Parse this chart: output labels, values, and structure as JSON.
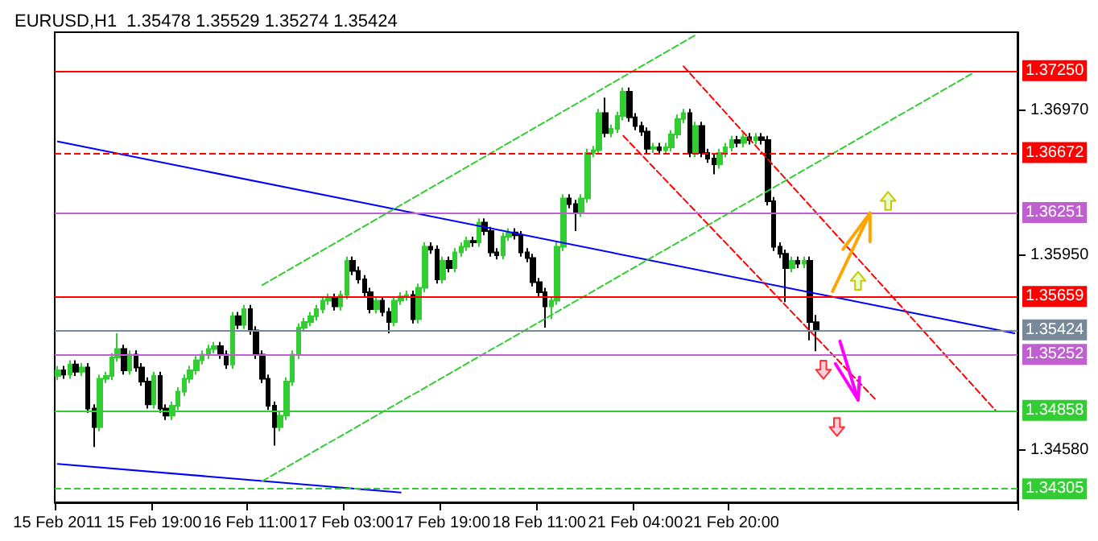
{
  "chart_data": {
    "type": "candlestick",
    "title": "EURUSD,H1  1.35478 1.35529 1.35274 1.35424",
    "categories": [
      "15 Feb 2011",
      null,
      null,
      null,
      null,
      null,
      null,
      null,
      null,
      null,
      null,
      null,
      null,
      null,
      null,
      null,
      "15 Feb 19:00",
      null,
      null,
      null,
      null,
      null,
      null,
      null,
      null,
      null,
      null,
      null,
      null,
      null,
      null,
      null,
      "16 Feb 11:00",
      null,
      null,
      null,
      null,
      null,
      null,
      null,
      null,
      null,
      null,
      null,
      null,
      null,
      null,
      null,
      "17 Feb 03:00",
      null,
      null,
      null,
      null,
      null,
      null,
      null,
      null,
      null,
      null,
      null,
      null,
      null,
      null,
      null,
      "17 Feb 19:00",
      null,
      null,
      null,
      null,
      null,
      null,
      null,
      null,
      null,
      null,
      null,
      null,
      null,
      null,
      null,
      "18 Feb 11:00",
      null,
      null,
      null,
      null,
      null,
      null,
      null,
      null,
      null,
      null,
      null,
      null,
      null,
      null,
      null,
      "21 Feb 04:00",
      null,
      null,
      null,
      null,
      null,
      null,
      null,
      null,
      null,
      null,
      null,
      null,
      null,
      null,
      null,
      "21 Feb 20:00",
      null,
      null,
      null,
      null,
      null,
      null,
      null,
      null,
      null,
      null,
      null,
      null,
      null,
      null,
      null,
      null,
      null,
      null,
      null,
      null,
      null,
      null,
      null,
      null,
      null,
      null,
      null,
      null,
      null,
      null,
      null,
      null,
      null,
      null,
      null,
      null,
      null,
      null,
      null,
      null,
      null,
      null,
      null,
      null,
      null,
      null,
      null
    ],
    "colors": [
      "#32cd32",
      "#000000",
      "#32cd32",
      "#000000",
      "#32cd32",
      "#000000",
      "#000000",
      "#32cd32",
      "#32cd32",
      "#32cd32",
      "#32cd32",
      "#000000",
      "#32cd32",
      "#000000",
      "#000000",
      "#000000",
      "#32cd32",
      "#000000",
      "#000000",
      "#32cd32",
      "#32cd32",
      "#32cd32",
      "#32cd32",
      "#32cd32",
      "#32cd32",
      "#32cd32",
      "#32cd32",
      "#000000",
      "#000000",
      "#32cd32",
      "#000000",
      "#32cd32",
      "#000000",
      "#000000",
      "#000000",
      "#000000",
      "#000000",
      "#32cd32",
      "#32cd32",
      "#32cd32",
      "#32cd32",
      "#32cd32",
      "#32cd32",
      "#32cd32",
      "#32cd32",
      "#32cd32",
      "#000000",
      "#32cd32",
      "#32cd32",
      "#000000",
      "#000000",
      "#000000",
      "#000000",
      "#32cd32",
      "#000000",
      "#000000",
      "#32cd32",
      "#32cd32",
      "#32cd32",
      "#000000",
      "#32cd32",
      "#32cd32",
      "#000000",
      "#000000",
      "#32cd32",
      "#000000",
      "#32cd32",
      "#32cd32",
      "#32cd32",
      "#000000",
      "#32cd32",
      "#000000",
      "#000000",
      "#000000",
      "#32cd32",
      "#32cd32",
      "#000000",
      "#000000",
      "#000000",
      "#000000",
      "#000000",
      "#000000",
      "#32cd32",
      "#32cd32",
      "#32cd32",
      "#000000",
      "#000000",
      "#32cd32",
      "#32cd32",
      "#32cd32",
      "#32cd32",
      "#000000",
      "#32cd32",
      "#32cd32",
      "#32cd32",
      "#000000",
      "#000000",
      "#000000",
      "#000000",
      "#32cd32",
      "#000000",
      "#32cd32",
      "#32cd32",
      "#32cd32",
      "#32cd32",
      "#000000",
      "#32cd32",
      "#000000",
      "#000000",
      "#000000",
      "#32cd32",
      "#32cd32",
      "#32cd32",
      "#000000",
      "#32cd32",
      "#000000",
      "#32cd32",
      "#000000",
      "#000000",
      "#000000",
      "#000000",
      "#000000",
      "#32cd32",
      "#000000",
      "#32cd32",
      "#000000",
      "#000000",
      null,
      null,
      null,
      null,
      null,
      null,
      null,
      null,
      null,
      null,
      null,
      null,
      null,
      null,
      null,
      null,
      null,
      null,
      null,
      null,
      null,
      null,
      null,
      null,
      null,
      null,
      null,
      null,
      null,
      null,
      null,
      null,
      null
    ],
    "ohlc": [
      [
        1.351,
        1.3517,
        1.3507,
        1.3514
      ],
      [
        1.3514,
        1.3517,
        1.3508,
        1.3511
      ],
      [
        1.3511,
        1.3521,
        1.3508,
        1.3518
      ],
      [
        1.3518,
        1.3521,
        1.351,
        1.3513
      ],
      [
        1.3513,
        1.3519,
        1.351,
        1.3516
      ],
      [
        1.3516,
        1.3519,
        1.3484,
        1.3487
      ],
      [
        1.3487,
        1.349,
        1.346,
        1.3474
      ],
      [
        1.3474,
        1.3511,
        1.3471,
        1.3508
      ],
      [
        1.3508,
        1.3513,
        1.3505,
        1.351
      ],
      [
        1.351,
        1.3526,
        1.3507,
        1.3523
      ],
      [
        1.3523,
        1.354,
        1.352,
        1.3529
      ],
      [
        1.3529,
        1.3532,
        1.3511,
        1.3514
      ],
      [
        1.3514,
        1.3528,
        1.3511,
        1.3525
      ],
      [
        1.3525,
        1.3528,
        1.3513,
        1.3516
      ],
      [
        1.3516,
        1.3519,
        1.3503,
        1.3506
      ],
      [
        1.3506,
        1.3509,
        1.3487,
        1.349
      ],
      [
        1.349,
        1.3513,
        1.3487,
        1.351
      ],
      [
        1.351,
        1.3513,
        1.3484,
        1.3487
      ],
      [
        1.3487,
        1.349,
        1.3479,
        1.3482
      ],
      [
        1.3482,
        1.3492,
        1.3479,
        1.3489
      ],
      [
        1.3489,
        1.3502,
        1.3486,
        1.3499
      ],
      [
        1.3499,
        1.3511,
        1.3496,
        1.3508
      ],
      [
        1.3508,
        1.3517,
        1.3505,
        1.3514
      ],
      [
        1.3514,
        1.3524,
        1.3511,
        1.3521
      ],
      [
        1.3521,
        1.3528,
        1.3518,
        1.3525
      ],
      [
        1.3525,
        1.3532,
        1.3522,
        1.3529
      ],
      [
        1.3529,
        1.3534,
        1.3526,
        1.3531
      ],
      [
        1.3531,
        1.3534,
        1.3522,
        1.3525
      ],
      [
        1.3525,
        1.3528,
        1.3515,
        1.3518
      ],
      [
        1.3518,
        1.3555,
        1.3515,
        1.3552
      ],
      [
        1.3552,
        1.3555,
        1.3543,
        1.3546
      ],
      [
        1.3546,
        1.356,
        1.3543,
        1.3557
      ],
      [
        1.3557,
        1.356,
        1.3539,
        1.3542
      ],
      [
        1.3542,
        1.3545,
        1.3522,
        1.3525
      ],
      [
        1.3525,
        1.3528,
        1.3505,
        1.3508
      ],
      [
        1.3508,
        1.3511,
        1.3486,
        1.3489
      ],
      [
        1.3489,
        1.3492,
        1.3461,
        1.3474
      ],
      [
        1.3474,
        1.3485,
        1.3471,
        1.3482
      ],
      [
        1.3482,
        1.3509,
        1.3479,
        1.3506
      ],
      [
        1.3506,
        1.3528,
        1.3503,
        1.3525
      ],
      [
        1.3525,
        1.3547,
        1.3522,
        1.3544
      ],
      [
        1.3544,
        1.3551,
        1.3541,
        1.3548
      ],
      [
        1.3548,
        1.3555,
        1.3545,
        1.3552
      ],
      [
        1.3552,
        1.356,
        1.3549,
        1.3557
      ],
      [
        1.3557,
        1.3566,
        1.3554,
        1.3563
      ],
      [
        1.3563,
        1.3568,
        1.356,
        1.3565
      ],
      [
        1.3565,
        1.3568,
        1.3556,
        1.3559
      ],
      [
        1.3559,
        1.357,
        1.3556,
        1.3567
      ],
      [
        1.3567,
        1.3594,
        1.3564,
        1.3591
      ],
      [
        1.3591,
        1.3594,
        1.3581,
        1.3584
      ],
      [
        1.3584,
        1.3587,
        1.3575,
        1.3578
      ],
      [
        1.3578,
        1.3581,
        1.3566,
        1.3569
      ],
      [
        1.3569,
        1.3572,
        1.3554,
        1.3557
      ],
      [
        1.3557,
        1.3566,
        1.3554,
        1.3563
      ],
      [
        1.3563,
        1.3566,
        1.3552,
        1.3555
      ],
      [
        1.3555,
        1.3558,
        1.354,
        1.3548
      ],
      [
        1.3548,
        1.3566,
        1.3545,
        1.3563
      ],
      [
        1.3563,
        1.3569,
        1.356,
        1.3566
      ],
      [
        1.3566,
        1.357,
        1.3563,
        1.3567
      ],
      [
        1.3567,
        1.357,
        1.3547,
        1.355
      ],
      [
        1.355,
        1.3575,
        1.3547,
        1.3572
      ],
      [
        1.3572,
        1.3604,
        1.3569,
        1.3601
      ],
      [
        1.3601,
        1.3604,
        1.3596,
        1.3599
      ],
      [
        1.3599,
        1.3602,
        1.3575,
        1.3578
      ],
      [
        1.3578,
        1.3594,
        1.3575,
        1.3591
      ],
      [
        1.3591,
        1.3594,
        1.3583,
        1.3586
      ],
      [
        1.3586,
        1.36,
        1.3583,
        1.3597
      ],
      [
        1.3597,
        1.3604,
        1.3594,
        1.3601
      ],
      [
        1.3601,
        1.3608,
        1.3598,
        1.3605
      ],
      [
        1.3605,
        1.3608,
        1.3601,
        1.3604
      ],
      [
        1.3604,
        1.3621,
        1.3601,
        1.3618
      ],
      [
        1.3618,
        1.3621,
        1.3609,
        1.3612
      ],
      [
        1.3612,
        1.3615,
        1.3594,
        1.3597
      ],
      [
        1.3597,
        1.36,
        1.3592,
        1.3595
      ],
      [
        1.3595,
        1.3611,
        1.3592,
        1.3608
      ],
      [
        1.3608,
        1.3614,
        1.3605,
        1.3611
      ],
      [
        1.3611,
        1.3614,
        1.3606,
        1.3609
      ],
      [
        1.3609,
        1.3612,
        1.3594,
        1.3597
      ],
      [
        1.3597,
        1.36,
        1.359,
        1.3593
      ],
      [
        1.3593,
        1.3596,
        1.3573,
        1.3576
      ],
      [
        1.3576,
        1.3579,
        1.3566,
        1.3569
      ],
      [
        1.3569,
        1.3572,
        1.3544,
        1.3559
      ],
      [
        1.3559,
        1.3566,
        1.355,
        1.3563
      ],
      [
        1.3563,
        1.3604,
        1.356,
        1.3601
      ],
      [
        1.3601,
        1.3638,
        1.3598,
        1.3635
      ],
      [
        1.3635,
        1.3638,
        1.3628,
        1.3631
      ],
      [
        1.3631,
        1.3634,
        1.3612,
        1.3625
      ],
      [
        1.3625,
        1.3638,
        1.3622,
        1.3635
      ],
      [
        1.3635,
        1.367,
        1.3632,
        1.3667
      ],
      [
        1.3667,
        1.3672,
        1.3664,
        1.3669
      ],
      [
        1.3669,
        1.3698,
        1.3666,
        1.3695
      ],
      [
        1.3695,
        1.3706,
        1.3678,
        1.3681
      ],
      [
        1.3681,
        1.3687,
        1.3678,
        1.3684
      ],
      [
        1.3684,
        1.3696,
        1.3681,
        1.3693
      ],
      [
        1.3693,
        1.3713,
        1.369,
        1.371
      ],
      [
        1.371,
        1.3713,
        1.3689,
        1.3692
      ],
      [
        1.3692,
        1.3695,
        1.3683,
        1.3686
      ],
      [
        1.3686,
        1.3689,
        1.3679,
        1.3682
      ],
      [
        1.3682,
        1.3685,
        1.3667,
        1.367
      ],
      [
        1.367,
        1.3674,
        1.3667,
        1.3671
      ],
      [
        1.3671,
        1.3674,
        1.3666,
        1.3669
      ],
      [
        1.3669,
        1.3674,
        1.3666,
        1.3671
      ],
      [
        1.3671,
        1.3683,
        1.3668,
        1.368
      ],
      [
        1.368,
        1.3694,
        1.3677,
        1.3691
      ],
      [
        1.3691,
        1.3698,
        1.3688,
        1.3695
      ],
      [
        1.3695,
        1.3698,
        1.3664,
        1.3667
      ],
      [
        1.3667,
        1.3689,
        1.3664,
        1.3686
      ],
      [
        1.3686,
        1.3689,
        1.3664,
        1.3667
      ],
      [
        1.3667,
        1.367,
        1.366,
        1.3663
      ],
      [
        1.3663,
        1.3666,
        1.3652,
        1.3659
      ],
      [
        1.3659,
        1.367,
        1.3656,
        1.3667
      ],
      [
        1.3667,
        1.3674,
        1.3664,
        1.3671
      ],
      [
        1.3671,
        1.3679,
        1.3668,
        1.3676
      ],
      [
        1.3676,
        1.3679,
        1.3671,
        1.3674
      ],
      [
        1.3674,
        1.3681,
        1.3671,
        1.3678
      ],
      [
        1.3678,
        1.3681,
        1.3673,
        1.3676
      ],
      [
        1.3676,
        1.3681,
        1.3673,
        1.3678
      ],
      [
        1.3678,
        1.3681,
        1.3673,
        1.3676
      ],
      [
        1.3676,
        1.3679,
        1.363,
        1.3633
      ],
      [
        1.3633,
        1.3636,
        1.3598,
        1.3601
      ],
      [
        1.3601,
        1.3604,
        1.3593,
        1.3596
      ],
      [
        1.3596,
        1.3599,
        1.3562,
        1.3586
      ],
      [
        1.3586,
        1.3594,
        1.3583,
        1.3591
      ],
      [
        1.3591,
        1.3594,
        1.3586,
        1.3589
      ],
      [
        1.3589,
        1.3594,
        1.3586,
        1.3591
      ],
      [
        1.3591,
        1.3594,
        1.3535,
        1.3548
      ],
      [
        1.35478,
        1.35529,
        1.35274,
        1.35424
      ],
      null,
      null,
      null,
      null,
      null,
      null,
      null,
      null,
      null,
      null,
      null,
      null,
      null,
      null,
      null,
      null,
      null,
      null,
      null,
      null,
      null,
      null,
      null,
      null,
      null,
      null,
      null,
      null,
      null,
      null,
      null,
      null,
      null
    ],
    "series": [
      {
        "type": "line",
        "color": "#0000ff",
        "line_style": "solid",
        "values": [
          1.3675,
          null,
          null,
          null,
          null,
          null,
          null,
          null,
          null,
          null,
          null,
          null,
          null,
          null,
          null,
          null,
          null,
          null,
          null,
          null,
          null,
          null,
          null,
          null,
          null,
          null,
          null,
          null,
          null,
          null,
          null,
          null,
          null,
          null,
          null,
          null,
          null,
          null,
          null,
          null,
          null,
          null,
          null,
          null,
          null,
          null,
          null,
          null,
          null,
          null,
          null,
          null,
          null,
          null,
          null,
          null,
          null,
          null,
          null,
          null,
          null,
          null,
          null,
          null,
          null,
          null,
          null,
          null,
          null,
          null,
          null,
          null,
          null,
          null,
          null,
          null,
          null,
          null,
          null,
          null,
          null,
          null,
          null,
          null,
          null,
          null,
          null,
          null,
          null,
          null,
          null,
          null,
          null,
          null,
          null,
          null,
          null,
          null,
          null,
          null,
          null,
          null,
          null,
          null,
          null,
          null,
          null,
          null,
          null,
          null,
          null,
          null,
          null,
          null,
          null,
          null,
          null,
          null,
          null,
          null,
          null,
          null,
          null,
          null,
          null,
          null,
          null,
          null,
          null,
          null,
          null,
          null,
          null,
          null,
          null,
          null,
          null,
          null,
          null,
          null,
          null,
          null,
          null,
          null,
          null,
          null,
          null,
          null,
          null,
          null,
          null,
          null,
          null,
          null,
          null,
          null,
          null,
          null,
          null,
          1.354
        ]
      },
      {
        "type": "line",
        "color": "#0000ff",
        "line_style": "solid",
        "values": [
          1.3448,
          null,
          null,
          null,
          null,
          null,
          null,
          null,
          null,
          null,
          null,
          null,
          null,
          null,
          null,
          null,
          null,
          null,
          null,
          null,
          null,
          null,
          null,
          null,
          null,
          null,
          null,
          null,
          null,
          null,
          null,
          null,
          null,
          null,
          null,
          null,
          null,
          null,
          null,
          null,
          null,
          null,
          null,
          null,
          null,
          null,
          null,
          null,
          null,
          null,
          null,
          null,
          null,
          null,
          null,
          null,
          null,
          1.3428,
          null,
          null,
          null,
          null,
          null,
          null,
          null,
          null,
          null,
          null,
          null,
          null,
          null,
          null,
          null,
          null,
          null,
          null,
          null,
          null,
          null,
          null,
          null,
          null,
          null,
          null,
          null,
          null,
          null,
          null,
          null,
          null,
          null,
          null,
          null,
          null,
          null,
          null,
          null,
          null,
          null,
          null,
          null,
          null,
          null,
          null,
          null,
          null,
          null,
          null,
          null,
          null,
          null,
          null,
          null,
          null,
          null,
          null,
          null,
          null,
          null,
          null,
          null,
          null,
          null,
          null,
          null,
          null,
          null,
          null,
          null,
          null,
          null,
          null,
          null,
          null,
          null,
          null,
          null,
          null,
          null,
          null,
          null,
          null,
          null,
          null,
          null,
          null,
          null,
          null,
          null,
          null,
          null,
          null,
          null,
          null,
          null,
          null,
          null,
          null,
          null,
          null
        ]
      },
      {
        "type": "line",
        "color": "#32cd32",
        "line_style": "dashed",
        "values": [
          null,
          null,
          null,
          null,
          null,
          null,
          null,
          null,
          null,
          null,
          null,
          null,
          null,
          null,
          null,
          null,
          null,
          null,
          null,
          null,
          null,
          null,
          null,
          null,
          null,
          null,
          null,
          null,
          null,
          null,
          null,
          null,
          null,
          null,
          1.3574,
          null,
          null,
          null,
          null,
          null,
          null,
          null,
          null,
          null,
          null,
          null,
          null,
          null,
          null,
          null,
          null,
          null,
          null,
          null,
          null,
          null,
          null,
          null,
          null,
          null,
          null,
          null,
          null,
          null,
          null,
          null,
          null,
          null,
          null,
          null,
          null,
          null,
          null,
          null,
          null,
          null,
          null,
          null,
          null,
          null,
          null,
          null,
          null,
          null,
          null,
          null,
          null,
          null,
          null,
          null,
          null,
          null,
          null,
          null,
          null,
          null,
          null,
          null,
          null,
          null,
          null,
          null,
          null,
          null,
          null,
          null,
          1.375,
          null,
          null,
          null,
          null,
          null,
          null,
          null,
          null,
          null,
          null,
          null,
          null,
          null,
          null,
          null,
          null,
          null,
          null,
          null,
          null,
          null,
          null,
          null,
          null,
          null,
          null,
          null,
          null,
          null,
          null,
          null,
          null,
          null,
          null,
          null,
          null,
          null,
          null,
          null,
          null,
          null,
          null,
          null,
          null,
          null,
          null,
          null,
          null,
          null,
          null,
          null,
          null,
          null
        ]
      },
      {
        "type": "line",
        "color": "#32cd32",
        "line_style": "dashed",
        "values": [
          null,
          null,
          null,
          null,
          null,
          null,
          null,
          null,
          null,
          null,
          null,
          null,
          null,
          null,
          null,
          null,
          null,
          null,
          null,
          null,
          null,
          null,
          null,
          null,
          null,
          null,
          null,
          null,
          null,
          null,
          null,
          null,
          null,
          null,
          1.3436,
          null,
          null,
          null,
          null,
          null,
          null,
          null,
          null,
          null,
          null,
          null,
          null,
          null,
          null,
          null,
          null,
          null,
          null,
          null,
          null,
          null,
          null,
          null,
          null,
          null,
          null,
          null,
          null,
          null,
          null,
          null,
          null,
          null,
          null,
          null,
          null,
          null,
          null,
          null,
          null,
          null,
          null,
          null,
          null,
          null,
          null,
          null,
          null,
          null,
          null,
          null,
          null,
          null,
          null,
          null,
          null,
          null,
          null,
          null,
          null,
          null,
          null,
          null,
          null,
          null,
          null,
          null,
          null,
          null,
          null,
          null,
          null,
          null,
          null,
          null,
          null,
          null,
          null,
          null,
          null,
          null,
          null,
          null,
          null,
          null,
          null,
          null,
          null,
          null,
          null,
          null,
          null,
          null,
          null,
          null,
          null,
          null,
          null,
          null,
          null,
          null,
          null,
          null,
          null,
          null,
          null,
          null,
          null,
          null,
          null,
          null,
          null,
          null,
          null,
          null,
          null,
          null,
          1.3723,
          null,
          null,
          null,
          null,
          null,
          null,
          null
        ]
      },
      {
        "type": "line",
        "color": "#ff0000",
        "line_style": "dashed",
        "values": [
          null,
          null,
          null,
          null,
          null,
          null,
          null,
          null,
          null,
          null,
          null,
          null,
          null,
          null,
          null,
          null,
          null,
          null,
          null,
          null,
          null,
          null,
          null,
          null,
          null,
          null,
          null,
          null,
          null,
          null,
          null,
          null,
          null,
          null,
          null,
          null,
          null,
          null,
          null,
          null,
          null,
          null,
          null,
          null,
          null,
          null,
          null,
          null,
          null,
          null,
          null,
          null,
          null,
          null,
          null,
          null,
          null,
          null,
          null,
          null,
          null,
          null,
          null,
          null,
          null,
          null,
          null,
          null,
          null,
          null,
          null,
          null,
          null,
          null,
          null,
          null,
          null,
          null,
          null,
          null,
          null,
          null,
          null,
          null,
          null,
          null,
          null,
          null,
          null,
          null,
          null,
          null,
          null,
          null,
          null,
          null,
          null,
          null,
          null,
          null,
          null,
          null,
          null,
          null,
          1.3728,
          null,
          null,
          null,
          null,
          null,
          null,
          null,
          null,
          null,
          null,
          null,
          null,
          null,
          null,
          null,
          null,
          null,
          null,
          null,
          null,
          null,
          null,
          null,
          null,
          null,
          null,
          null,
          null,
          null,
          null,
          null,
          null,
          null,
          null,
          null,
          null,
          null,
          null,
          null,
          null,
          null,
          null,
          null,
          null,
          null,
          null,
          null,
          null,
          null,
          null,
          null,
          1.3485,
          null,
          null,
          null
        ]
      },
      {
        "type": "line",
        "color": "#ff0000",
        "line_style": "dashed",
        "values": [
          null,
          null,
          null,
          null,
          null,
          null,
          null,
          null,
          null,
          null,
          null,
          null,
          null,
          null,
          null,
          null,
          null,
          null,
          null,
          null,
          null,
          null,
          null,
          null,
          null,
          null,
          null,
          null,
          null,
          null,
          null,
          null,
          null,
          null,
          null,
          null,
          null,
          null,
          null,
          null,
          null,
          null,
          null,
          null,
          null,
          null,
          null,
          null,
          null,
          null,
          null,
          null,
          null,
          null,
          null,
          null,
          null,
          null,
          null,
          null,
          null,
          null,
          null,
          null,
          null,
          null,
          null,
          null,
          null,
          null,
          null,
          null,
          null,
          null,
          null,
          null,
          null,
          null,
          null,
          null,
          null,
          null,
          null,
          null,
          null,
          null,
          null,
          null,
          null,
          null,
          null,
          null,
          null,
          null,
          1.3679,
          null,
          null,
          null,
          null,
          null,
          null,
          null,
          null,
          null,
          null,
          null,
          null,
          null,
          null,
          null,
          null,
          null,
          null,
          null,
          null,
          null,
          null,
          null,
          null,
          null,
          null,
          null,
          null,
          null,
          null,
          null,
          null,
          null,
          null,
          null,
          null,
          null,
          null,
          null,
          null,
          null,
          1.3493,
          null,
          null,
          null,
          null,
          null,
          null,
          null,
          null,
          null,
          null,
          null,
          null,
          null,
          null,
          null,
          null,
          null,
          null,
          null,
          null,
          null,
          null,
          null
        ]
      }
    ],
    "ylim": [
      1.3421,
      1.3752
    ],
    "yticks": [
      {
        "value": 1.3458,
        "label": "1.34580"
      },
      {
        "value": 1.3595,
        "label": "1.35950"
      },
      {
        "value": 1.3697,
        "label": "1.36970"
      }
    ],
    "ref_lines": [
      {
        "axis": "y",
        "value": 1.3725,
        "label": "1.37250",
        "color": "#ff0000",
        "line_style": "solid"
      },
      {
        "axis": "y",
        "value": 1.36672,
        "label": "1.36672",
        "color": "#ff0000",
        "line_style": "dashed"
      },
      {
        "axis": "y",
        "value": 1.36251,
        "label": "1.36251",
        "color": "#bf5fd0",
        "line_style": "solid"
      },
      {
        "axis": "y",
        "value": 1.35659,
        "label": "1.35659",
        "color": "#ff0000",
        "line_style": "solid"
      },
      {
        "axis": "y",
        "value": 1.35424,
        "label": "1.35424",
        "color": "#778899",
        "line_style": "solid"
      },
      {
        "axis": "y",
        "value": 1.35252,
        "label": "1.35252",
        "color": "#bf5fd0",
        "line_style": "solid"
      },
      {
        "axis": "y",
        "value": 1.34858,
        "label": "1.34858",
        "color": "#32cd32",
        "line_style": "solid"
      },
      {
        "axis": "y",
        "value": 1.34305,
        "label": "1.34305",
        "color": "#32cd32",
        "line_style": "dashed"
      }
    ],
    "grid": false
  }
}
